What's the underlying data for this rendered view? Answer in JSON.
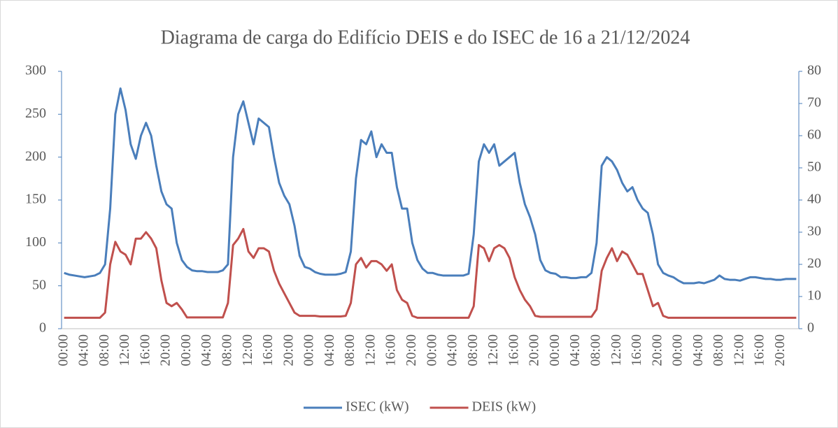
{
  "chart_data": {
    "type": "line",
    "title": "Diagrama de carga do Edifício DEIS e do ISEC de 16 a 21/12/2024",
    "categories": [
      "00:00",
      null,
      null,
      null,
      "04:00",
      null,
      null,
      null,
      "08:00",
      null,
      null,
      null,
      "12:00",
      null,
      null,
      null,
      "16:00",
      null,
      null,
      null,
      "20:00",
      null,
      null,
      null,
      "00:00",
      null,
      null,
      null,
      "04:00",
      null,
      null,
      null,
      "08:00",
      null,
      null,
      null,
      "12:00",
      null,
      null,
      null,
      "16:00",
      null,
      null,
      null,
      "20:00",
      null,
      null,
      null,
      "00:00",
      null,
      null,
      null,
      "04:00",
      null,
      null,
      null,
      "08:00",
      null,
      null,
      null,
      "12:00",
      null,
      null,
      null,
      "16:00",
      null,
      null,
      null,
      "20:00",
      null,
      null,
      null,
      "00:00",
      null,
      null,
      null,
      "04:00",
      null,
      null,
      null,
      "08:00",
      null,
      null,
      null,
      "12:00",
      null,
      null,
      null,
      "16:00",
      null,
      null,
      null,
      "20:00",
      null,
      null,
      null,
      "00:00",
      null,
      null,
      null,
      "04:00",
      null,
      null,
      null,
      "08:00",
      null,
      null,
      null,
      "12:00",
      null,
      null,
      null,
      "16:00",
      null,
      null,
      null,
      "20:00",
      null,
      null,
      null,
      "00:00",
      null,
      null,
      null,
      "04:00",
      null,
      null,
      null,
      "08:00",
      null,
      null,
      null,
      "12:00",
      null,
      null,
      null,
      "16:00",
      null,
      null,
      null,
      "20:00",
      null,
      null,
      null
    ],
    "series": [
      {
        "name": "ISEC (kW)",
        "color": "#4a7ebb",
        "axis": "y",
        "values": [
          65,
          63,
          62,
          61,
          60,
          61,
          62,
          65,
          75,
          140,
          250,
          280,
          255,
          215,
          198,
          225,
          240,
          225,
          190,
          160,
          145,
          140,
          100,
          80,
          72,
          68,
          67,
          67,
          66,
          66,
          66,
          68,
          75,
          200,
          250,
          265,
          240,
          215,
          245,
          240,
          235,
          200,
          170,
          155,
          145,
          120,
          85,
          72,
          70,
          66,
          64,
          63,
          63,
          63,
          64,
          66,
          90,
          175,
          220,
          215,
          230,
          200,
          215,
          205,
          205,
          165,
          140,
          140,
          100,
          80,
          70,
          65,
          65,
          63,
          62,
          62,
          62,
          62,
          62,
          64,
          110,
          195,
          215,
          205,
          215,
          190,
          195,
          200,
          205,
          170,
          145,
          130,
          110,
          80,
          68,
          65,
          64,
          60,
          60,
          59,
          59,
          60,
          60,
          65,
          100,
          190,
          200,
          195,
          185,
          170,
          160,
          165,
          150,
          140,
          135,
          110,
          75,
          65,
          62,
          60,
          56,
          53,
          53,
          53,
          54,
          53,
          55,
          57,
          62,
          58,
          57,
          57,
          56,
          58,
          60,
          60,
          59,
          58,
          58,
          57,
          57,
          58,
          58,
          58
        ]
      },
      {
        "name": "DEIS (kW)",
        "color": "#c0504d",
        "axis": "y2",
        "values": [
          3.4,
          3.4,
          3.4,
          3.4,
          3.4,
          3.4,
          3.4,
          3.4,
          5,
          20,
          27,
          24,
          23,
          20,
          28,
          28,
          30,
          28,
          25,
          15,
          8,
          7,
          8,
          6,
          3.5,
          3.5,
          3.5,
          3.5,
          3.5,
          3.5,
          3.5,
          3.5,
          8,
          26,
          28,
          31,
          24,
          22,
          25,
          25,
          24,
          18,
          14,
          11,
          8,
          5,
          4,
          4,
          4,
          4,
          3.8,
          3.8,
          3.8,
          3.8,
          3.8,
          4,
          8,
          20,
          22,
          19,
          21,
          21,
          20,
          18,
          20,
          12,
          9,
          8,
          4,
          3.4,
          3.4,
          3.4,
          3.4,
          3.4,
          3.4,
          3.4,
          3.4,
          3.4,
          3.4,
          3.4,
          7,
          26,
          25,
          21,
          25,
          26,
          25,
          22,
          16,
          12,
          9,
          7,
          4,
          3.7,
          3.7,
          3.7,
          3.7,
          3.7,
          3.7,
          3.7,
          3.7,
          3.7,
          3.7,
          3.7,
          6,
          18,
          22,
          25,
          21,
          24,
          23,
          20,
          17,
          17,
          12,
          7,
          8,
          4,
          3.4,
          3.4,
          3.4,
          3.4,
          3.4,
          3.4,
          3.4,
          3.4,
          3.4,
          3.4,
          3.4,
          3.4,
          3.4,
          3.4,
          3.4,
          3.4,
          3.4,
          3.4,
          3.4,
          3.4,
          3.4,
          3.4,
          3.4,
          3.4,
          3.4,
          3.4
        ]
      }
    ],
    "ylim": [
      0,
      300
    ],
    "yticks": [
      0,
      50,
      100,
      150,
      200,
      250,
      300
    ],
    "y2lim": [
      0,
      80
    ],
    "y2ticks": [
      0,
      10,
      20,
      30,
      40,
      50,
      60,
      70,
      80
    ],
    "legend": "bottom"
  }
}
